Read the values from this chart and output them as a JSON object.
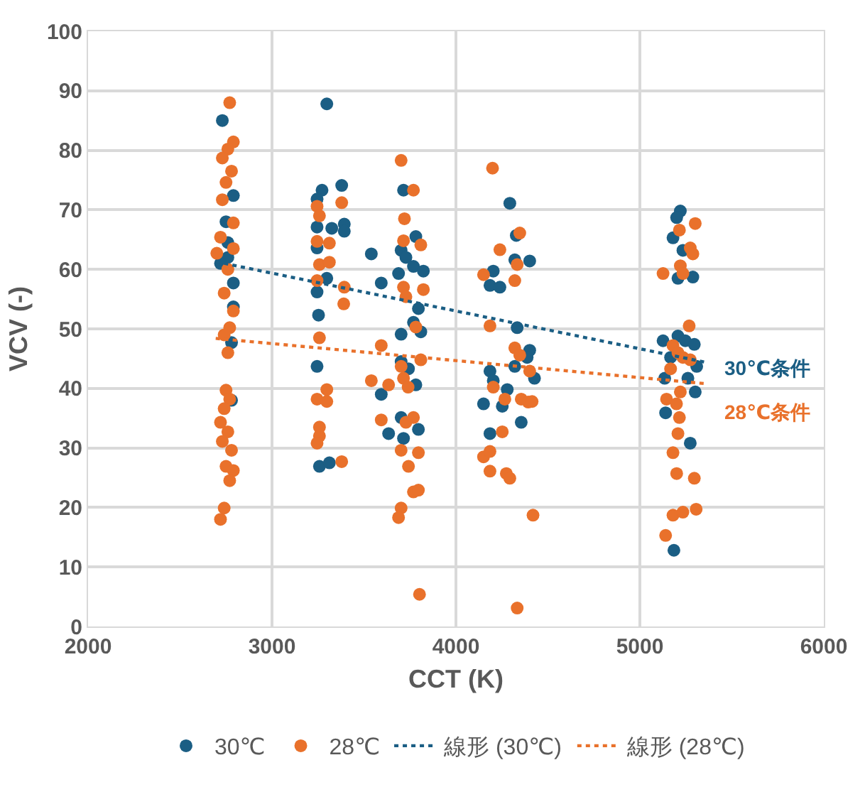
{
  "chart_data": {
    "type": "scatter",
    "xlabel": "CCT (K)",
    "ylabel": "VCV (-)",
    "xlim": [
      2000,
      6000
    ],
    "xticks": [
      2000,
      3000,
      4000,
      5000,
      6000
    ],
    "ylim": [
      0,
      100
    ],
    "yticks": [
      0,
      10,
      20,
      30,
      40,
      50,
      60,
      70,
      80,
      90,
      100
    ],
    "grid": true,
    "legend": "bottom",
    "marker": "circle",
    "series": [
      {
        "name": "30℃",
        "color": "#1b5e84",
        "x": [
          2730,
          2790,
          2750,
          2760,
          2720,
          2790,
          2790,
          2780,
          2780,
          2760,
          3298,
          3272,
          3379,
          3245,
          3245,
          3325,
          3393,
          3393,
          3245,
          3298,
          3245,
          3253,
          3245,
          3258,
          3312,
          3540,
          3594,
          3688,
          3702,
          3728,
          3782,
          3769,
          3823,
          3715,
          3796,
          3769,
          3809,
          3702,
          3702,
          3742,
          3782,
          3594,
          3702,
          3634,
          3715,
          3796,
          4293,
          4328,
          4320,
          4401,
          4203,
          4185,
          4239,
          4333,
          4401,
          4387,
          4320,
          4427,
          4185,
          4203,
          4279,
          4150,
          4252,
          4355,
          4185,
          5220,
          5200,
          5180,
          5234,
          5207,
          5288,
          5126,
          5207,
          5247,
          5296,
          5167,
          5309,
          5135,
          5261,
          5301,
          5140,
          5274,
          5185
        ],
        "values": [
          85,
          72.4,
          68,
          62,
          61,
          57.7,
          53.7,
          47.7,
          38,
          64.5,
          87.8,
          73.3,
          74.1,
          71.8,
          67.1,
          66.9,
          67.6,
          66.4,
          63.6,
          58.5,
          56.2,
          52.3,
          43.7,
          26.9,
          27.5,
          62.6,
          57.7,
          59.3,
          63.2,
          62,
          65.5,
          60.5,
          59.7,
          73.3,
          53.4,
          51.1,
          49.5,
          49.1,
          44.5,
          43.3,
          40.6,
          39,
          35.1,
          32.4,
          31.6,
          33.1,
          71.1,
          65.7,
          61.6,
          61.4,
          59.7,
          57.3,
          57,
          50.2,
          46.4,
          45.2,
          43.7,
          41.7,
          42.9,
          41.3,
          39.8,
          37.4,
          37,
          34.3,
          32.4,
          69.8,
          68.7,
          65.3,
          63.2,
          58.5,
          58.7,
          48,
          48.8,
          48,
          47.4,
          45.2,
          43.7,
          41.7,
          41.7,
          39.4,
          35.9,
          30.8,
          12.8
        ]
      },
      {
        "name": "28℃",
        "color": "#e9712b",
        "x": [
          2770,
          2790,
          2760,
          2730,
          2780,
          2750,
          2730,
          2790,
          2720,
          2790,
          2700,
          2760,
          2740,
          2790,
          2770,
          2740,
          2760,
          2750,
          2770,
          2740,
          2720,
          2760,
          2730,
          2780,
          2750,
          2790,
          2770,
          2740,
          2720,
          3245,
          3258,
          3379,
          3245,
          3312,
          3258,
          3312,
          3245,
          3393,
          3390,
          3258,
          3298,
          3245,
          3298,
          3258,
          3258,
          3245,
          3379,
          3702,
          3769,
          3720,
          3715,
          3809,
          3715,
          3728,
          3823,
          3782,
          3594,
          3809,
          3702,
          3715,
          3540,
          3634,
          3740,
          3594,
          3728,
          3769,
          3702,
          3796,
          3742,
          3769,
          3796,
          3702,
          3688,
          3802,
          4199,
          4347,
          4239,
          4333,
          4150,
          4320,
          4185,
          4320,
          4347,
          4401,
          4203,
          4266,
          4355,
          4393,
          4414,
          4252,
          4150,
          4185,
          4185,
          4274,
          4293,
          4419,
          4333,
          5301,
          5215,
          5274,
          5288,
          5220,
          5126,
          5234,
          5268,
          5180,
          5207,
          5234,
          5274,
          5167,
          5220,
          5145,
          5199,
          5215,
          5207,
          5180,
          5200,
          5296,
          5180,
          5234,
          5306,
          5140
        ],
        "values": [
          88,
          81.4,
          80.2,
          78.7,
          76.5,
          74.6,
          71.7,
          67.8,
          65.4,
          63.5,
          62.7,
          60,
          56,
          53,
          50.2,
          49,
          46,
          39.7,
          38.2,
          36.6,
          34.3,
          32.7,
          31.1,
          29.6,
          26.9,
          26.2,
          24.5,
          19.9,
          18,
          70.6,
          69,
          71.2,
          64.7,
          64.4,
          60.8,
          61.2,
          58.1,
          57,
          54.2,
          48.5,
          39.8,
          38.2,
          37.8,
          33.5,
          32,
          30.8,
          27.7,
          78.3,
          73.3,
          68.5,
          64.8,
          64.1,
          57,
          55.4,
          56.6,
          50.3,
          47.2,
          44.8,
          43.7,
          41.7,
          41.3,
          40.6,
          40.2,
          34.7,
          34.3,
          35.1,
          29.6,
          29.2,
          26.9,
          22.6,
          22.9,
          19.9,
          18.3,
          5.4,
          77,
          66.1,
          63.3,
          60.8,
          59.1,
          58.1,
          50.5,
          46.8,
          45.6,
          42.9,
          40.2,
          38.2,
          38.2,
          37.7,
          37.8,
          32.7,
          28.5,
          29.4,
          26.1,
          25.7,
          24.9,
          18.7,
          3.1,
          67.7,
          66.6,
          63.6,
          62.6,
          60.6,
          59.3,
          59.3,
          50.5,
          47.2,
          46,
          45.2,
          44.8,
          43.3,
          39.4,
          38.2,
          37.4,
          35.1,
          32.4,
          29.2,
          25.7,
          24.9,
          18.7,
          19.2,
          19.7,
          15.3
        ]
      },
      {
        "name": "線形 (30℃)",
        "type": "line",
        "line_style": "dotted",
        "marker": "none",
        "color": "#1b5e84",
        "x": [
          2694,
          5355
        ],
        "values": [
          61.3,
          44.4
        ]
      },
      {
        "name": "線形 (28℃)",
        "type": "line",
        "line_style": "dotted",
        "marker": "none",
        "color": "#e9712b",
        "x": [
          2694,
          5355
        ],
        "values": [
          48.4,
          40.8
        ]
      }
    ],
    "annotations": [
      "30℃条件",
      "28℃条件"
    ]
  }
}
